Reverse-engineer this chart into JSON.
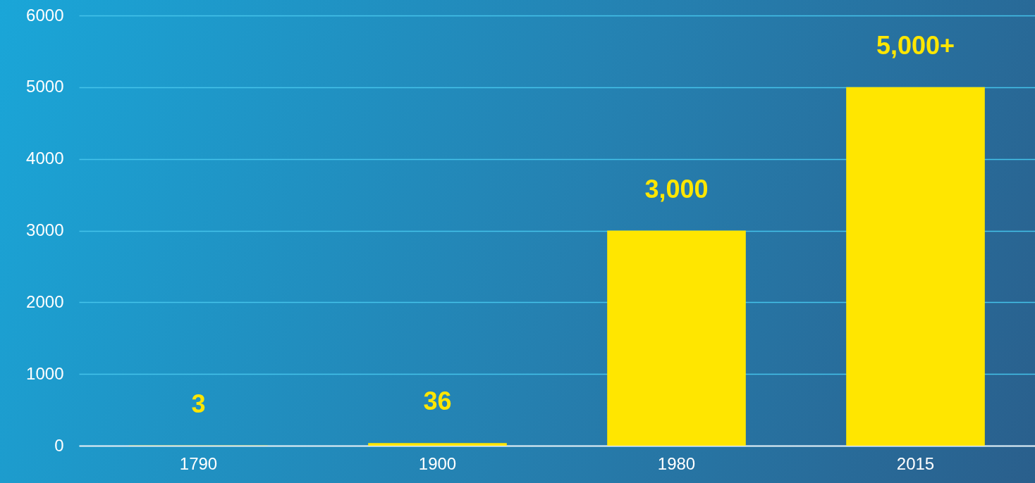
{
  "chart_data": {
    "type": "bar",
    "categories": [
      "1790",
      "1900",
      "1980",
      "2015"
    ],
    "values": [
      3,
      36,
      3000,
      5000
    ],
    "value_labels": [
      "3",
      "36",
      "3,000",
      "5,000+"
    ],
    "color": "#ffe600",
    "ylim": [
      0,
      6000
    ],
    "yticks": [
      0,
      1000,
      2000,
      3000,
      4000,
      5000,
      6000
    ],
    "grid": "y"
  }
}
